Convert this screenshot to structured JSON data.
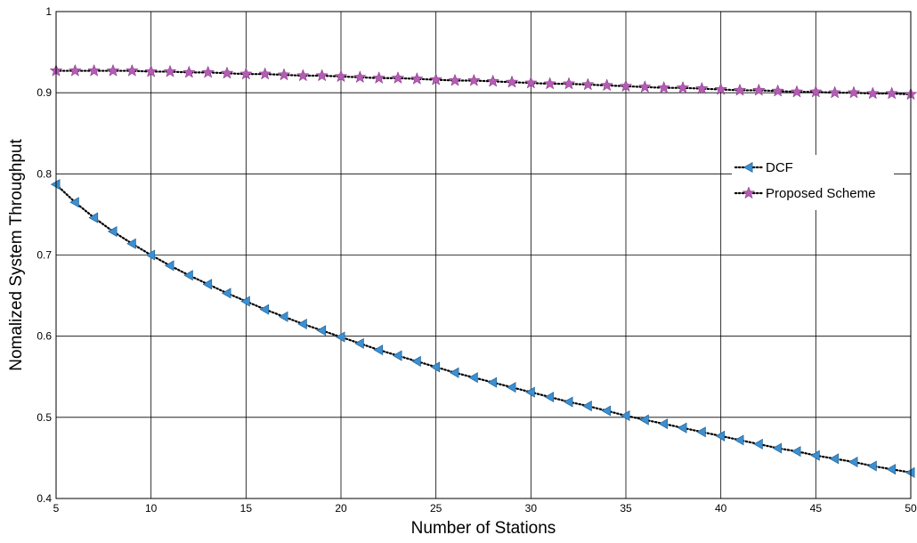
{
  "chart_data": {
    "type": "line",
    "title": "",
    "xlabel": "Number of Stations",
    "ylabel": "Nomalized System Throughput",
    "xlim": [
      5,
      50
    ],
    "ylim": [
      0.4,
      1.0
    ],
    "xticks": [
      5,
      10,
      15,
      20,
      25,
      30,
      35,
      40,
      45,
      50
    ],
    "xtick_labels": [
      "5",
      "10",
      "15",
      "20",
      "25",
      "30",
      "35",
      "40",
      "45",
      "50"
    ],
    "yticks": [
      0.4,
      0.5,
      0.6,
      0.7,
      0.8,
      0.9,
      1.0
    ],
    "ytick_labels": [
      "0.4",
      "0.5",
      "0.6",
      "0.7",
      "0.8",
      "0.9",
      "1"
    ],
    "grid": true,
    "legend_position": "right",
    "x": [
      5,
      6,
      7,
      8,
      9,
      10,
      11,
      12,
      13,
      14,
      15,
      16,
      17,
      18,
      19,
      20,
      21,
      22,
      23,
      24,
      25,
      26,
      27,
      28,
      29,
      30,
      31,
      32,
      33,
      34,
      35,
      36,
      37,
      38,
      39,
      40,
      41,
      42,
      43,
      44,
      45,
      46,
      47,
      48,
      49,
      50
    ],
    "series": [
      {
        "name": "DCF",
        "marker": "triangle-left",
        "marker_color": "#3c8fd0",
        "line_color": "#000000",
        "line_style": "dotted",
        "values": [
          0.787,
          0.765,
          0.746,
          0.729,
          0.714,
          0.7,
          0.687,
          0.675,
          0.664,
          0.653,
          0.643,
          0.633,
          0.624,
          0.615,
          0.607,
          0.599,
          0.591,
          0.583,
          0.576,
          0.569,
          0.562,
          0.555,
          0.549,
          0.543,
          0.537,
          0.531,
          0.525,
          0.519,
          0.514,
          0.508,
          0.502,
          0.497,
          0.492,
          0.487,
          0.482,
          0.477,
          0.472,
          0.467,
          0.462,
          0.458,
          0.453,
          0.449,
          0.445,
          0.44,
          0.436,
          0.432
        ]
      },
      {
        "name": "Proposed Scheme",
        "marker": "star",
        "marker_color": "#b55cb5",
        "line_color": "#000000",
        "line_style": "dotted",
        "values": [
          0.927,
          0.927,
          0.927,
          0.927,
          0.927,
          0.926,
          0.926,
          0.925,
          0.925,
          0.924,
          0.923,
          0.923,
          0.922,
          0.921,
          0.921,
          0.92,
          0.919,
          0.918,
          0.918,
          0.917,
          0.916,
          0.915,
          0.915,
          0.914,
          0.913,
          0.912,
          0.911,
          0.911,
          0.91,
          0.909,
          0.908,
          0.907,
          0.906,
          0.906,
          0.905,
          0.904,
          0.903,
          0.903,
          0.902,
          0.901,
          0.901,
          0.9,
          0.9,
          0.899,
          0.899,
          0.898
        ]
      }
    ]
  }
}
